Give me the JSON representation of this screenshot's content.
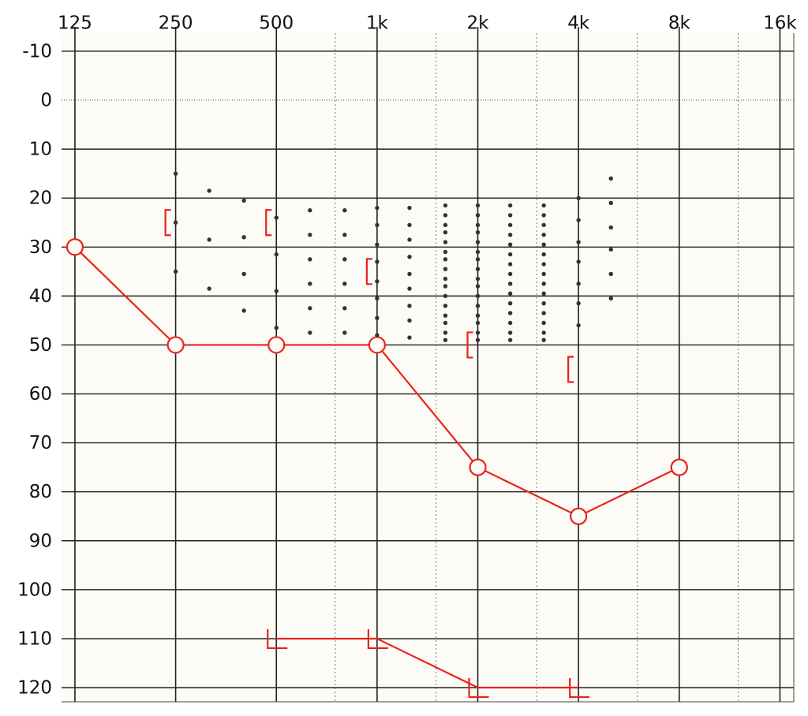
{
  "chart_data": {
    "type": "audiogram",
    "xscale": "log",
    "yinverted": true,
    "xlim": [
      114,
      17600
    ],
    "ylim": [
      -13.7,
      122.9
    ],
    "xticks": [
      125,
      250,
      500,
      {
        "value": 1000,
        "label": "1k"
      },
      {
        "value": 2000,
        "label": "2k"
      },
      {
        "value": 4000,
        "label": "4k"
      },
      {
        "value": 8000,
        "label": "8k"
      },
      {
        "value": 16000,
        "label": "16k"
      }
    ],
    "xminorticks": [
      750,
      1500,
      3000,
      6000,
      12000
    ],
    "yticks": [
      -10,
      0,
      10,
      20,
      30,
      40,
      50,
      60,
      70,
      80,
      90,
      100,
      110,
      120
    ],
    "grid": true,
    "background": "#fcfbf5",
    "series": [
      {
        "marker": "circle",
        "line": true,
        "color": "#e8231f",
        "x": [
          125,
          250,
          500,
          1000,
          2000,
          4000,
          8000
        ],
        "values": [
          30,
          50,
          50,
          50,
          75,
          85,
          75
        ]
      },
      {
        "marker": "bracket",
        "line": false,
        "color": "#e8231f",
        "x": [
          250,
          500,
          1000,
          2000,
          4000
        ],
        "values": [
          25,
          25,
          35,
          50,
          55
        ]
      },
      {
        "marker": "corner",
        "line": true,
        "color": "#e8231f",
        "x": [
          500,
          1000,
          2000,
          4000
        ],
        "values": [
          110,
          110,
          120,
          120
        ]
      },
      {
        "marker": "dot",
        "line": false,
        "color": "#333333",
        "x": [
          250,
          250,
          250,
          315,
          315,
          315,
          400,
          400,
          400,
          400,
          500,
          500,
          500,
          500,
          630,
          630,
          630,
          630,
          630,
          630,
          800,
          800,
          800,
          800,
          800,
          800,
          1000,
          1000,
          1000,
          1000,
          1000,
          1000,
          1000,
          1000,
          1250,
          1250,
          1250,
          1250,
          1250,
          1250,
          1250,
          1250,
          1250,
          1600,
          1600,
          1600,
          1600,
          1600,
          1600,
          1600,
          1600,
          1600,
          1600,
          1600,
          1600,
          1600,
          1600,
          1600,
          1600,
          2000,
          2000,
          2000,
          2000,
          2000,
          2000,
          2000,
          2000,
          2000,
          2000,
          2000,
          2000,
          2000,
          2000,
          2000,
          2000,
          2500,
          2500,
          2500,
          2500,
          2500,
          2500,
          2500,
          2500,
          2500,
          2500,
          2500,
          2500,
          2500,
          2500,
          2500,
          3150,
          3150,
          3150,
          3150,
          3150,
          3150,
          3150,
          3150,
          3150,
          3150,
          3150,
          3150,
          3150,
          3150,
          3150,
          4000,
          4000,
          4000,
          4000,
          4000,
          4000,
          4000,
          5000,
          5000,
          5000,
          5000,
          5000,
          5000
        ],
        "values": [
          15,
          25,
          35,
          18.5,
          28.5,
          38.5,
          20.5,
          28,
          35.5,
          43,
          24,
          31.5,
          39,
          46.5,
          22.5,
          27.5,
          32.5,
          37.5,
          42.5,
          47.5,
          22.5,
          27.5,
          32.5,
          37.5,
          42.5,
          47.5,
          22,
          25.5,
          29.5,
          33,
          37,
          40.5,
          44.5,
          48,
          22,
          25.5,
          28.5,
          32,
          35.5,
          38.5,
          42,
          45,
          48.5,
          21.5,
          23.5,
          25.5,
          27,
          29,
          31,
          32.5,
          34.5,
          36.5,
          38,
          40,
          42,
          44,
          45.5,
          47.5,
          49,
          21.5,
          23.5,
          25.5,
          27,
          29,
          31,
          32.5,
          34.5,
          36.5,
          38,
          40,
          42,
          44,
          45.5,
          47.5,
          49,
          21.5,
          23.5,
          25.5,
          27.5,
          29.5,
          31.5,
          33.5,
          35.5,
          37.5,
          39.5,
          41.5,
          43.5,
          45.5,
          47.5,
          49,
          21.5,
          23.5,
          25.5,
          27.5,
          29.5,
          31.5,
          33.5,
          35.5,
          37.5,
          39.5,
          41.5,
          43.5,
          45.5,
          47.5,
          49,
          20,
          24.5,
          29,
          33,
          37.5,
          41.5,
          46,
          16,
          21,
          26,
          30.5,
          35.5,
          40.5
        ]
      }
    ]
  }
}
